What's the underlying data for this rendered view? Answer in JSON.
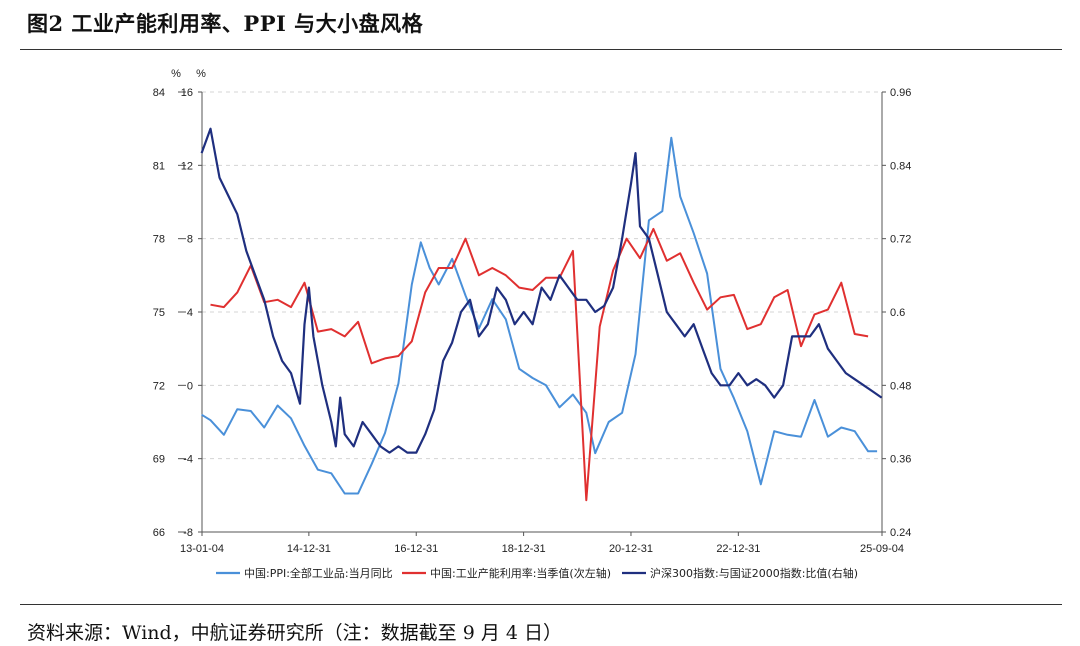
{
  "header": {
    "title": "图2 工业产能利用率、PPI 与大小盘风格"
  },
  "footer": {
    "source": "资料来源：Wind，中航证券研究所（注：数据截至 9 月 4 日）"
  },
  "chart_data": {
    "type": "line",
    "x_ticks": [
      "13-01-04",
      "14-12-31",
      "16-12-31",
      "18-12-31",
      "20-12-31",
      "22-12-31",
      "25-09-04"
    ],
    "x_range": [
      "2013-01-04",
      "2025-09-04"
    ],
    "left_unit_1": "%",
    "left_unit_2": "%",
    "left_outer_axis": {
      "ticks": [
        84,
        81,
        78,
        75,
        72,
        69,
        66
      ],
      "range": [
        66,
        84
      ],
      "labels": [
        "84",
        "81",
        "78",
        "75",
        "72",
        "69",
        "66"
      ]
    },
    "left_inner_axis": {
      "ticks": [
        16,
        12,
        8,
        4,
        0,
        -4,
        -8
      ],
      "range": [
        -8,
        16
      ],
      "labels": [
        "16",
        "12",
        "8",
        "4",
        "0",
        "-4",
        "-8"
      ]
    },
    "right_axis": {
      "ticks": [
        0.96,
        0.84,
        0.72,
        0.6,
        0.48,
        0.36,
        0.24
      ],
      "range": [
        0.24,
        0.96
      ],
      "labels": [
        "0.96",
        "0.84",
        "0.72",
        "0.6",
        "0.48",
        "0.36",
        "0.24"
      ]
    },
    "grid": "horizontal dashed",
    "legend_position": "bottom",
    "series": [
      {
        "name": "中国:PPI:全部工业品:当月同比",
        "color": "#4a90d9",
        "axis": "left_inner",
        "points": [
          [
            "2013-01",
            -1.6
          ],
          [
            "2013-03",
            -1.9
          ],
          [
            "2013-06",
            -2.7
          ],
          [
            "2013-09",
            -1.3
          ],
          [
            "2013-12",
            -1.4
          ],
          [
            "2014-03",
            -2.3
          ],
          [
            "2014-06",
            -1.1
          ],
          [
            "2014-09",
            -1.8
          ],
          [
            "2014-12",
            -3.3
          ],
          [
            "2015-03",
            -4.6
          ],
          [
            "2015-06",
            -4.8
          ],
          [
            "2015-09",
            -5.9
          ],
          [
            "2015-12",
            -5.9
          ],
          [
            "2016-03",
            -4.3
          ],
          [
            "2016-06",
            -2.6
          ],
          [
            "2016-09",
            0.1
          ],
          [
            "2016-12",
            5.5
          ],
          [
            "2017-02",
            7.8
          ],
          [
            "2017-04",
            6.4
          ],
          [
            "2017-06",
            5.5
          ],
          [
            "2017-09",
            6.9
          ],
          [
            "2017-12",
            4.9
          ],
          [
            "2018-03",
            3.1
          ],
          [
            "2018-06",
            4.7
          ],
          [
            "2018-09",
            3.6
          ],
          [
            "2018-12",
            0.9
          ],
          [
            "2019-03",
            0.4
          ],
          [
            "2019-06",
            0.0
          ],
          [
            "2019-09",
            -1.2
          ],
          [
            "2019-12",
            -0.5
          ],
          [
            "2020-03",
            -1.5
          ],
          [
            "2020-05",
            -3.7
          ],
          [
            "2020-08",
            -2.0
          ],
          [
            "2020-11",
            -1.5
          ],
          [
            "2021-02",
            1.7
          ],
          [
            "2021-05",
            9.0
          ],
          [
            "2021-08",
            9.5
          ],
          [
            "2021-10",
            13.5
          ],
          [
            "2021-12",
            10.3
          ],
          [
            "2022-03",
            8.3
          ],
          [
            "2022-06",
            6.1
          ],
          [
            "2022-09",
            0.9
          ],
          [
            "2022-12",
            -0.7
          ],
          [
            "2023-03",
            -2.5
          ],
          [
            "2023-06",
            -5.4
          ],
          [
            "2023-09",
            -2.5
          ],
          [
            "2023-12",
            -2.7
          ],
          [
            "2024-03",
            -2.8
          ],
          [
            "2024-06",
            -0.8
          ],
          [
            "2024-09",
            -2.8
          ],
          [
            "2024-12",
            -2.3
          ],
          [
            "2025-03",
            -2.5
          ],
          [
            "2025-06",
            -3.6
          ],
          [
            "2025-08",
            -3.6
          ]
        ]
      },
      {
        "name": "中国:工业产能利用率:当季值(次左轴)",
        "color": "#e03030",
        "axis": "left_outer",
        "points": [
          [
            "2013-03",
            75.3
          ],
          [
            "2013-06",
            75.2
          ],
          [
            "2013-09",
            75.8
          ],
          [
            "2013-12",
            76.9
          ],
          [
            "2014-03",
            75.4
          ],
          [
            "2014-06",
            75.5
          ],
          [
            "2014-09",
            75.2
          ],
          [
            "2014-12",
            76.2
          ],
          [
            "2015-03",
            74.2
          ],
          [
            "2015-06",
            74.3
          ],
          [
            "2015-09",
            74.0
          ],
          [
            "2015-12",
            74.6
          ],
          [
            "2016-03",
            72.9
          ],
          [
            "2016-06",
            73.1
          ],
          [
            "2016-09",
            73.2
          ],
          [
            "2016-12",
            73.8
          ],
          [
            "2017-03",
            75.8
          ],
          [
            "2017-06",
            76.8
          ],
          [
            "2017-09",
            76.8
          ],
          [
            "2017-12",
            78.0
          ],
          [
            "2018-03",
            76.5
          ],
          [
            "2018-06",
            76.8
          ],
          [
            "2018-09",
            76.5
          ],
          [
            "2018-12",
            76.0
          ],
          [
            "2019-03",
            75.9
          ],
          [
            "2019-06",
            76.4
          ],
          [
            "2019-09",
            76.4
          ],
          [
            "2019-12",
            77.5
          ],
          [
            "2020-03",
            67.3
          ],
          [
            "2020-06",
            74.4
          ],
          [
            "2020-09",
            76.7
          ],
          [
            "2020-12",
            78.0
          ],
          [
            "2021-03",
            77.2
          ],
          [
            "2021-06",
            78.4
          ],
          [
            "2021-09",
            77.1
          ],
          [
            "2021-12",
            77.4
          ],
          [
            "2022-03",
            76.2
          ],
          [
            "2022-06",
            75.1
          ],
          [
            "2022-09",
            75.6
          ],
          [
            "2022-12",
            75.7
          ],
          [
            "2023-03",
            74.3
          ],
          [
            "2023-06",
            74.5
          ],
          [
            "2023-09",
            75.6
          ],
          [
            "2023-12",
            75.9
          ],
          [
            "2024-03",
            73.6
          ],
          [
            "2024-06",
            74.9
          ],
          [
            "2024-09",
            75.1
          ],
          [
            "2024-12",
            76.2
          ],
          [
            "2025-03",
            74.1
          ],
          [
            "2025-06",
            74.0
          ]
        ]
      },
      {
        "name": "沪深300指数:与国证2000指数:比值(右轴)",
        "color": "#1f2f7f",
        "axis": "right",
        "points": [
          [
            "2013-01",
            0.86
          ],
          [
            "2013-03",
            0.9
          ],
          [
            "2013-05",
            0.82
          ],
          [
            "2013-07",
            0.79
          ],
          [
            "2013-09",
            0.76
          ],
          [
            "2013-11",
            0.7
          ],
          [
            "2014-01",
            0.66
          ],
          [
            "2014-03",
            0.62
          ],
          [
            "2014-05",
            0.56
          ],
          [
            "2014-07",
            0.52
          ],
          [
            "2014-09",
            0.5
          ],
          [
            "2014-11",
            0.45
          ],
          [
            "2014-12",
            0.58
          ],
          [
            "2015-01",
            0.64
          ],
          [
            "2015-02",
            0.56
          ],
          [
            "2015-04",
            0.48
          ],
          [
            "2015-06",
            0.42
          ],
          [
            "2015-07",
            0.38
          ],
          [
            "2015-08",
            0.46
          ],
          [
            "2015-09",
            0.4
          ],
          [
            "2015-11",
            0.38
          ],
          [
            "2016-01",
            0.42
          ],
          [
            "2016-03",
            0.4
          ],
          [
            "2016-05",
            0.38
          ],
          [
            "2016-07",
            0.37
          ],
          [
            "2016-09",
            0.38
          ],
          [
            "2016-11",
            0.37
          ],
          [
            "2017-01",
            0.37
          ],
          [
            "2017-03",
            0.4
          ],
          [
            "2017-05",
            0.44
          ],
          [
            "2017-07",
            0.52
          ],
          [
            "2017-09",
            0.55
          ],
          [
            "2017-11",
            0.6
          ],
          [
            "2018-01",
            0.62
          ],
          [
            "2018-03",
            0.56
          ],
          [
            "2018-05",
            0.58
          ],
          [
            "2018-07",
            0.64
          ],
          [
            "2018-09",
            0.62
          ],
          [
            "2018-11",
            0.58
          ],
          [
            "2019-01",
            0.6
          ],
          [
            "2019-03",
            0.58
          ],
          [
            "2019-05",
            0.64
          ],
          [
            "2019-07",
            0.62
          ],
          [
            "2019-09",
            0.66
          ],
          [
            "2019-11",
            0.64
          ],
          [
            "2020-01",
            0.62
          ],
          [
            "2020-03",
            0.62
          ],
          [
            "2020-05",
            0.6
          ],
          [
            "2020-07",
            0.61
          ],
          [
            "2020-09",
            0.64
          ],
          [
            "2020-11",
            0.72
          ],
          [
            "2021-01",
            0.81
          ],
          [
            "2021-02",
            0.86
          ],
          [
            "2021-03",
            0.74
          ],
          [
            "2021-05",
            0.72
          ],
          [
            "2021-07",
            0.66
          ],
          [
            "2021-09",
            0.6
          ],
          [
            "2021-11",
            0.58
          ],
          [
            "2022-01",
            0.56
          ],
          [
            "2022-03",
            0.58
          ],
          [
            "2022-05",
            0.54
          ],
          [
            "2022-07",
            0.5
          ],
          [
            "2022-09",
            0.48
          ],
          [
            "2022-11",
            0.48
          ],
          [
            "2023-01",
            0.5
          ],
          [
            "2023-03",
            0.48
          ],
          [
            "2023-05",
            0.49
          ],
          [
            "2023-07",
            0.48
          ],
          [
            "2023-09",
            0.46
          ],
          [
            "2023-11",
            0.48
          ],
          [
            "2024-01",
            0.56
          ],
          [
            "2024-03",
            0.56
          ],
          [
            "2024-05",
            0.56
          ],
          [
            "2024-07",
            0.58
          ],
          [
            "2024-09",
            0.54
          ],
          [
            "2024-11",
            0.52
          ],
          [
            "2025-01",
            0.5
          ],
          [
            "2025-03",
            0.49
          ],
          [
            "2025-05",
            0.48
          ],
          [
            "2025-07",
            0.47
          ],
          [
            "2025-09",
            0.46
          ]
        ]
      }
    ]
  }
}
